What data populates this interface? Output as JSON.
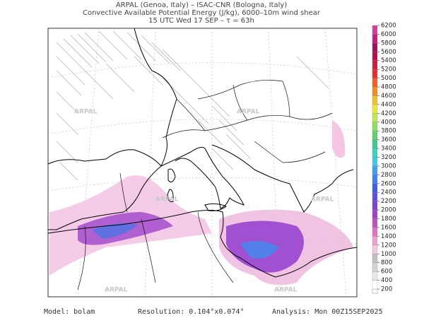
{
  "header": {
    "line1": "ARPAL (Genoa, Italy)  –  ISAC-CNR (Bologna, Italy)",
    "line2": "Convective Available Potential Energy (J/kg), 6000–10m wind shear",
    "line3": "15 UTC Wed 17 SEP  –  τ = 63h"
  },
  "map": {
    "watermark": "ARPAL"
  },
  "colorbar": {
    "levels": [
      200,
      400,
      600,
      800,
      1000,
      1200,
      1400,
      1600,
      1800,
      2000,
      2200,
      2400,
      2600,
      2800,
      3000,
      3200,
      3400,
      3600,
      3800,
      4000,
      4200,
      4400,
      4600,
      4800,
      5000,
      5200,
      5400,
      5600,
      5800,
      6000,
      6200
    ],
    "colors": [
      "#ffffff",
      "#e8e8e8",
      "#d4d4d4",
      "#c0c0c0",
      "#f0c8e0",
      "#f0a0d0",
      "#e070c8",
      "#c050c0",
      "#a040c8",
      "#8040d0",
      "#6050d8",
      "#4060e0",
      "#4080f0",
      "#40a0f0",
      "#40c8e8",
      "#40d0c0",
      "#40c890",
      "#60d070",
      "#90e060",
      "#c0e850",
      "#e8e840",
      "#f0c030",
      "#f09020",
      "#f06020",
      "#e03030",
      "#c82040",
      "#b01050",
      "#a01060",
      "#c02080",
      "#d040a0"
    ]
  },
  "footer": {
    "model": "Model: bolam",
    "resolution": "Resolution: 0.104°x0.074°",
    "analysis": "Analysis: Mon 00Z15SEP2025"
  }
}
